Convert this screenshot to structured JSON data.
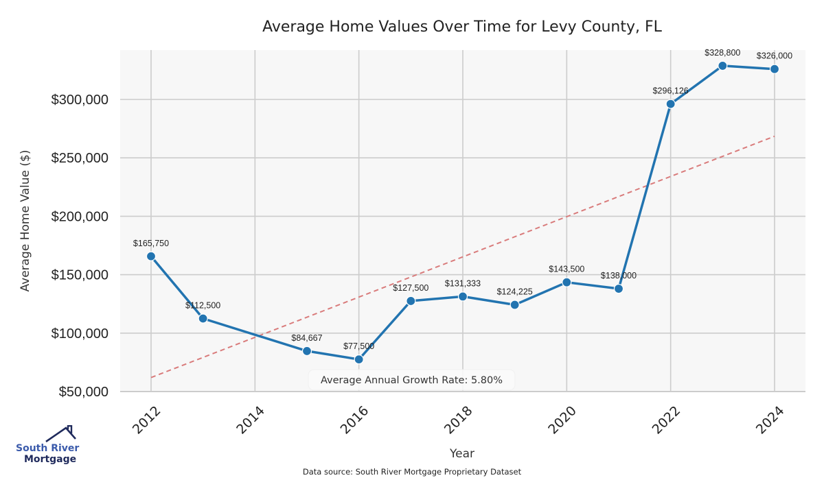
{
  "chart_data": {
    "type": "line",
    "title": "Average Home Values Over Time for Levy County, FL",
    "xlabel": "Year",
    "ylabel": "Average Home Value ($)",
    "xlim": [
      2011.3,
      2024.6
    ],
    "ylim": [
      50000,
      334000
    ],
    "x_ticks": [
      2012,
      2014,
      2016,
      2018,
      2020,
      2022,
      2024
    ],
    "x_tick_labels": [
      "2012",
      "2014",
      "2016",
      "2018",
      "2020",
      "2022",
      "2024"
    ],
    "y_ticks": [
      50000,
      100000,
      150000,
      200000,
      250000,
      300000
    ],
    "y_tick_labels": [
      "$50,000",
      "$100,000",
      "$150,000",
      "$200,000",
      "$250,000",
      "$300,000"
    ],
    "grid": true,
    "series": [
      {
        "name": "Average Home Value",
        "color": "#2274b0",
        "x": [
          2012,
          2013,
          2015,
          2016,
          2017,
          2018,
          2019,
          2020,
          2021,
          2022,
          2023,
          2024
        ],
        "values": [
          165750,
          112500,
          84667,
          77500,
          127500,
          131333,
          124225,
          143500,
          138000,
          296126,
          328800,
          326000
        ],
        "labels": [
          "$165,750",
          "$112,500",
          "$84,667",
          "$77,500",
          "$127,500",
          "$131,333",
          "$124,225",
          "$143,500",
          "$138,000",
          "$296,126",
          "$328,800",
          "$326,000"
        ]
      },
      {
        "name": "Trend",
        "color": "#d97b7b",
        "style": "dashed",
        "x": [
          2012,
          2024
        ],
        "values": [
          62000,
          268500
        ]
      }
    ],
    "annotation": "Average Annual Growth Rate: 5.80%",
    "source": "Data source: South River Mortgage Proprietary Dataset"
  },
  "logo": {
    "line1": "South River",
    "line2": "Mortgage"
  },
  "colors": {
    "plot_bg": "#f7f7f7",
    "grid": "#cccccc",
    "line": "#2274b0",
    "trend": "#d97b7b",
    "logo_light": "#3b5bab",
    "logo_dark": "#1f2a5c"
  }
}
